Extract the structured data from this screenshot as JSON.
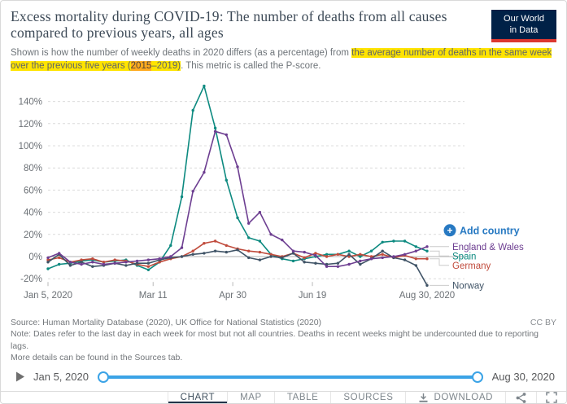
{
  "header": {
    "title_line1": "Excess mortality during COVID-19: The number of deaths from all causes",
    "title_line2": "compared to previous years, all ages",
    "logo_line1": "Our World",
    "logo_line2": "in Data"
  },
  "subtitle": {
    "pre": "Shown is how the number of weekly deaths in 2020 differs (as a percentage) from ",
    "highlight1": "the average number of deaths in the same week over the previous five years (",
    "highlight_year": "2015",
    "highlight2": "–2019)",
    "post": ". This metric is called the P-score."
  },
  "legend": {
    "add_country_label": "Add country",
    "add_country_plus": "+"
  },
  "chart_data": {
    "type": "line",
    "title": "Excess mortality during COVID-19: The number of deaths from all causes compared to previous years, all ages",
    "ylabel": "",
    "xlabel": "",
    "grid": "horizontal-dashed",
    "legend_position": "right",
    "ylim": [
      -30,
      160
    ],
    "yticks": [
      -20,
      0,
      20,
      40,
      60,
      80,
      100,
      120,
      140
    ],
    "ytick_suffix": "%",
    "x_total_days": 238,
    "x_ticks": [
      {
        "day": 0,
        "label": "Jan 5, 2020"
      },
      {
        "day": 66,
        "label": "Mar 11"
      },
      {
        "day": 116,
        "label": "Apr 30"
      },
      {
        "day": 166,
        "label": "Jun 19"
      },
      {
        "day": 238,
        "label": "Aug 30, 2020"
      }
    ],
    "x_week_ending": [
      "Jan 5",
      "Jan 12",
      "Jan 19",
      "Jan 26",
      "Feb 2",
      "Feb 9",
      "Feb 16",
      "Feb 23",
      "Mar 1",
      "Mar 8",
      "Mar 15",
      "Mar 22",
      "Mar 29",
      "Apr 5",
      "Apr 12",
      "Apr 19",
      "Apr 26",
      "May 3",
      "May 10",
      "May 17",
      "May 24",
      "May 31",
      "Jun 7",
      "Jun 14",
      "Jun 21",
      "Jun 28",
      "Jul 5",
      "Jul 12",
      "Jul 19",
      "Jul 26",
      "Aug 2",
      "Aug 9",
      "Aug 16",
      "Aug 23",
      "Aug 30"
    ],
    "unit": "percent",
    "series": [
      {
        "name": "Spain",
        "color": "#0d8a80",
        "values": [
          -11,
          -7,
          -6,
          -4,
          -3,
          -5,
          -4,
          -3,
          -8,
          -12,
          -5,
          10,
          54,
          132,
          154,
          116,
          69,
          35,
          17,
          14,
          2,
          -2,
          -4,
          -2,
          0,
          2,
          2,
          5,
          0,
          5,
          13,
          14,
          14,
          9,
          5
        ]
      },
      {
        "name": "Germany",
        "color": "#c04b3c",
        "values": [
          -3,
          -1,
          -5,
          -3,
          -2,
          -5,
          -3,
          -4,
          -7,
          -9,
          -5,
          -2,
          0,
          5,
          12,
          14,
          10,
          7,
          5,
          4,
          2,
          0,
          3,
          -1,
          3,
          0,
          2,
          0,
          2,
          0,
          2,
          -1,
          1,
          -2,
          -2
        ]
      },
      {
        "name": "Norway",
        "color": "#3f5366",
        "values": [
          -5,
          2,
          -8,
          -5,
          -9,
          -8,
          -6,
          -8,
          -6,
          -6,
          -3,
          -1,
          0,
          2,
          3,
          5,
          4,
          6,
          -1,
          -3,
          0,
          -1,
          3,
          -5,
          -6,
          -7,
          -6,
          2,
          -7,
          -2,
          5,
          -1,
          -3,
          -8,
          -26
        ]
      },
      {
        "name": "England & Wales",
        "color": "#6d3e91",
        "values": [
          -1,
          3,
          -5,
          -7,
          -5,
          -7,
          -6,
          -5,
          -4,
          -3,
          -2,
          0,
          8,
          59,
          76,
          113,
          110,
          81,
          30,
          40,
          20,
          15,
          5,
          4,
          1,
          -9,
          -9,
          -7,
          -4,
          -2,
          -1,
          0,
          2,
          5,
          9
        ]
      }
    ]
  },
  "footer": {
    "source": "Source: Human Mortality Database (2020), UK Office for National Statistics (2020)",
    "license": "CC BY",
    "note1": "Note: Dates refer to the last day in each week for most but not all countries. Deaths in recent weeks might be undercounted due to reporting lags.",
    "note2": "More details can be found in the Sources tab."
  },
  "timeline": {
    "start_label": "Jan 5, 2020",
    "end_label": "Aug 30, 2020"
  },
  "tabs": {
    "chart": "CHART",
    "map": "MAP",
    "table": "TABLE",
    "sources": "SOURCES",
    "download": "DOWNLOAD"
  }
}
